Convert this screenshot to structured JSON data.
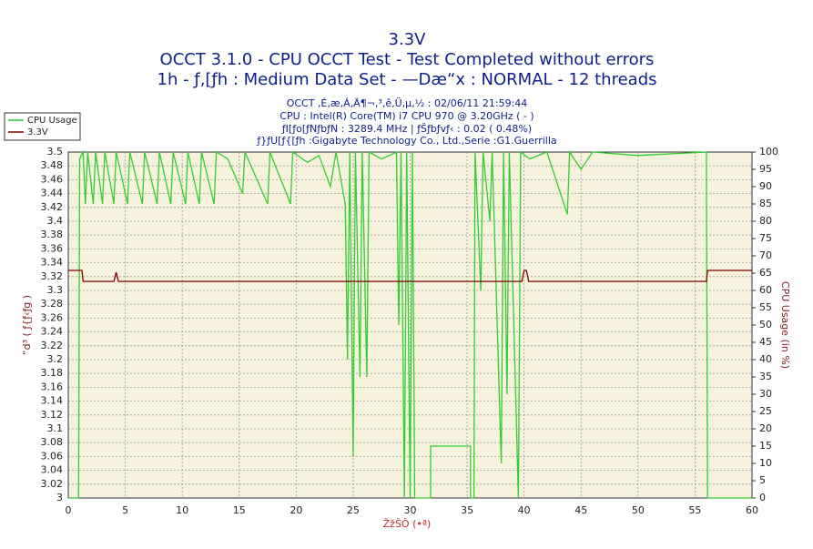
{
  "chart_data": {
    "type": "line",
    "title": "3.3V",
    "subtitle": "OCCT 3.1.0 - CPU OCCT Test - Test Completed without errors",
    "subtitle2": "1h - ƒ‚[ƒh : Medium Data Set - —Dæ“x : NORMAL - 12 threads",
    "info": [
      "OCCT ‚É‚æ‚Á‚Ä¶¬‚³‚ê‚Ü‚µ‚½ : 02/06/11 21:59:44",
      "CPU : Intel(R) Core(TM) i7 CPU 970 @ 3.20GHz ( - )",
      "ƒI[ƒo[ƒNƒbƒN : 3289.4 MHz | ƒŠƒbƒvƒ‹ : 0.02 ( 0.48%)",
      "ƒ}ƒU[ƒ{[ƒh :Gigabyte Technology Co., Ltd.,Serie :G1.Guerrilla"
    ],
    "xlabel": "ŽžŠÔ (•ª)",
    "ylabel": "“d³ ( ƒ{ƒ‹ƒg )",
    "y2label": "CPU Usage (in %)",
    "xlim": [
      0,
      60
    ],
    "xticks": [
      0,
      5,
      10,
      15,
      20,
      25,
      30,
      35,
      40,
      45,
      50,
      55,
      60
    ],
    "ylim": [
      3,
      3.5
    ],
    "yticks": [
      3,
      3.02,
      3.04,
      3.06,
      3.08,
      3.1,
      3.12,
      3.14,
      3.16,
      3.18,
      3.2,
      3.22,
      3.24,
      3.26,
      3.28,
      3.3,
      3.32,
      3.34,
      3.36,
      3.38,
      3.4,
      3.42,
      3.44,
      3.46,
      3.48,
      3.5
    ],
    "y2lim": [
      0,
      100
    ],
    "y2ticks": [
      0,
      5,
      10,
      15,
      20,
      25,
      30,
      35,
      40,
      45,
      50,
      55,
      60,
      65,
      70,
      75,
      80,
      85,
      90,
      95,
      100
    ],
    "grid": true,
    "legend": "top-left",
    "series": [
      {
        "name": "CPU Usage",
        "color": "#33cc33",
        "axis": "y2",
        "x": [
          0,
          0.9,
          1.0,
          1.3,
          1.5,
          1.7,
          2.2,
          2.4,
          3.0,
          3.2,
          4.0,
          4.2,
          5.2,
          5.4,
          6.5,
          6.7,
          7.8,
          8.0,
          9.0,
          9.2,
          10.3,
          10.5,
          11.5,
          11.7,
          12.8,
          13.0,
          14.0,
          15.3,
          15.5,
          17.5,
          17.7,
          19.5,
          19.7,
          21.0,
          22.0,
          23.0,
          23.5,
          24.3,
          24.5,
          24.7,
          25.0,
          25.2,
          25.6,
          25.8,
          26.2,
          26.4,
          27.5,
          28.8,
          29.0,
          29.2,
          29.5,
          29.7,
          30.0,
          30.2,
          30.4,
          31.8,
          31.8,
          35.3,
          35.3,
          35.6,
          35.7,
          36.2,
          36.4,
          37.0,
          37.2,
          38.0,
          38.2,
          38.5,
          38.7,
          39.5,
          39.7,
          40.5,
          42.0,
          43.8,
          44.0,
          45.0,
          46,
          50,
          56.0,
          56.1,
          60
        ],
        "values": [
          0,
          0,
          98,
          100,
          85,
          100,
          85,
          100,
          85,
          100,
          85,
          100,
          85,
          100,
          85,
          100,
          85,
          100,
          85,
          100,
          85,
          100,
          85,
          100,
          85,
          100,
          98,
          88,
          100,
          85,
          100,
          85,
          100,
          97,
          99,
          90,
          100,
          85,
          40,
          100,
          12,
          100,
          35,
          100,
          35,
          100,
          98,
          100,
          50,
          100,
          0,
          100,
          0,
          100,
          0,
          0,
          15,
          15,
          0,
          0,
          100,
          60,
          100,
          80,
          100,
          10,
          100,
          30,
          100,
          0,
          100,
          98,
          100,
          82,
          100,
          95,
          100,
          99,
          100,
          0,
          0
        ]
      },
      {
        "name": "3.3V",
        "color": "#800000",
        "x": [
          0,
          1.2,
          1.3,
          4.0,
          4.2,
          4.4,
          39.8,
          40.0,
          40.2,
          40.4,
          56.0,
          56.1,
          60
        ],
        "values": [
          3.329,
          3.329,
          3.313,
          3.313,
          3.326,
          3.313,
          3.313,
          3.329,
          3.329,
          3.313,
          3.313,
          3.329,
          3.329
        ]
      }
    ]
  }
}
